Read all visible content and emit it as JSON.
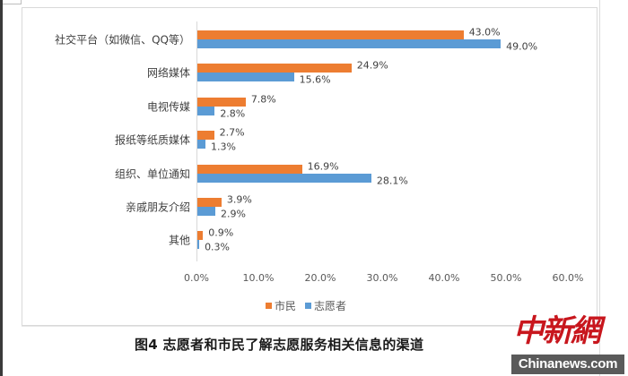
{
  "chart_data": {
    "type": "bar",
    "orientation": "horizontal",
    "title": "图4  志愿者和市民了解志愿服务相关信息的渠道",
    "xlabel": "",
    "ylabel": "",
    "xlim": [
      0,
      60
    ],
    "grid": false,
    "legend_position": "bottom",
    "categories": [
      "社交平台（如微信、QQ等）",
      "网络媒体",
      "电视传媒",
      "报纸等纸质媒体",
      "组织、单位通知",
      "亲戚朋友介绍",
      "其他"
    ],
    "series": [
      {
        "name": "市民",
        "color": "#ed7d31",
        "values": [
          43.0,
          24.9,
          7.8,
          2.7,
          16.9,
          3.9,
          0.9
        ]
      },
      {
        "name": "志愿者",
        "color": "#5b9bd5",
        "values": [
          49.0,
          15.6,
          2.8,
          1.3,
          28.1,
          2.9,
          0.3
        ]
      }
    ],
    "x_ticks": [
      "0.0%",
      "10.0%",
      "20.0%",
      "30.0%",
      "40.0%",
      "50.0%",
      "60.0%"
    ]
  },
  "categories": [
    {
      "label": "社交平台（如微信、QQ等）",
      "v0": "43.0%",
      "v1": "49.0%"
    },
    {
      "label": "网络媒体",
      "v0": "24.9%",
      "v1": "15.6%"
    },
    {
      "label": "电视传媒",
      "v0": "7.8%",
      "v1": "2.8%"
    },
    {
      "label": "报纸等纸质媒体",
      "v0": "2.7%",
      "v1": "1.3%"
    },
    {
      "label": "组织、单位通知",
      "v0": "16.9%",
      "v1": "28.1%"
    },
    {
      "label": "亲戚朋友介绍",
      "v0": "3.9%",
      "v1": "2.9%"
    },
    {
      "label": "其他",
      "v0": "0.9%",
      "v1": "0.3%"
    }
  ],
  "ticks": [
    "0.0%",
    "10.0%",
    "20.0%",
    "30.0%",
    "40.0%",
    "50.0%",
    "60.0%"
  ],
  "legend": {
    "series0": "市民",
    "series1": "志愿者"
  },
  "caption": "图4  志愿者和市民了解志愿服务相关信息的渠道",
  "watermark": {
    "cn": "中新網",
    "en": "Chinanews.com"
  },
  "colors": {
    "series0": "#ed7d31",
    "series1": "#5b9bd5"
  }
}
